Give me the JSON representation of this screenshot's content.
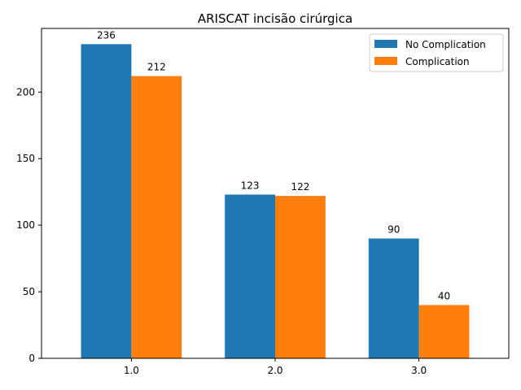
{
  "chart_data": {
    "type": "bar",
    "title": "ARISCAT incisão cirúrgica",
    "xlabel": "",
    "ylabel": "",
    "categories": [
      "1.0",
      "2.0",
      "3.0"
    ],
    "series": [
      {
        "name": "No Complication",
        "values": [
          236,
          123,
          90
        ],
        "color": "#1f77b4"
      },
      {
        "name": "Complication",
        "values": [
          212,
          122,
          40
        ],
        "color": "#ff7f0e"
      }
    ],
    "ylim": [
      0,
      247.8
    ],
    "yticks": [
      0,
      50,
      100,
      150,
      200
    ],
    "grid": false,
    "legend_position": "top-right"
  }
}
